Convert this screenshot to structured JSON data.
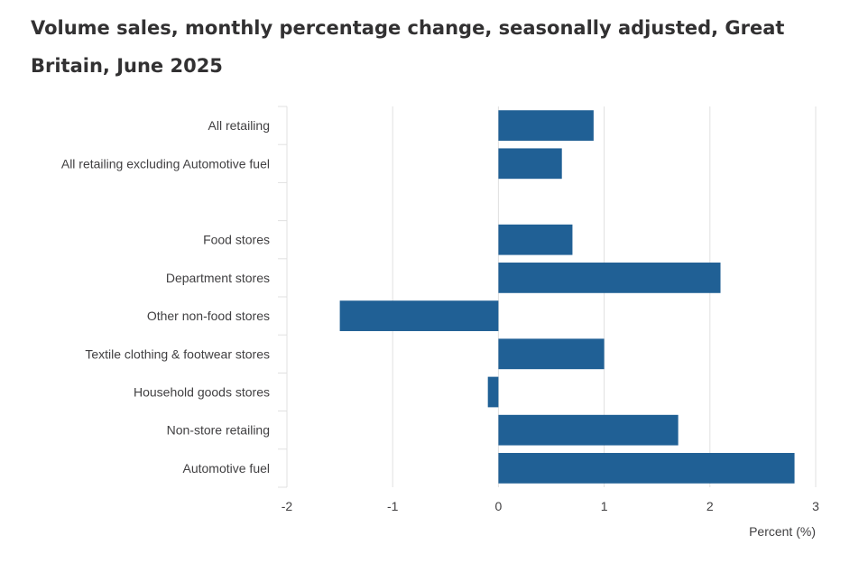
{
  "chart_data": {
    "type": "bar",
    "orientation": "horizontal",
    "title": "Volume sales, monthly percentage change, seasonally adjusted, Great Britain, June 2025",
    "categories": [
      "All retailing",
      "All retailing excluding Automotive fuel",
      "",
      "Food stores",
      "Department stores",
      "Other non-food stores",
      "Textile clothing & footwear stores",
      "Household goods stores",
      "Non-store retailing",
      "Automotive fuel"
    ],
    "values": [
      0.9,
      0.6,
      null,
      0.7,
      2.1,
      -1.5,
      1.0,
      -0.1,
      1.7,
      2.8
    ],
    "xlabel": "Percent (%)",
    "ylabel": "",
    "xlim": [
      -2,
      3
    ],
    "xticks": [
      "-2",
      "-1",
      "0",
      "1",
      "2",
      "3"
    ],
    "grid": true,
    "bar_color": "#206095",
    "grid_color": "#e0e0e0"
  }
}
